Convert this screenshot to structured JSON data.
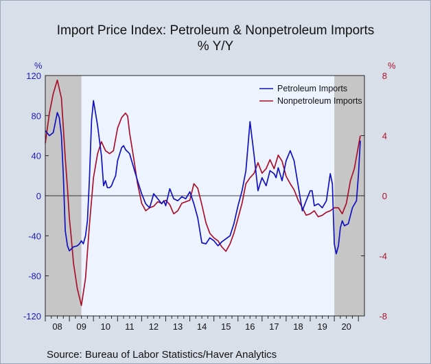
{
  "title": "Import Price Index: Petroleum & Nonpetroleum Imports",
  "subtitle": "% Y/Y",
  "source": "Source:  Bureau of Labor Statistics/Haver Analytics",
  "colors": {
    "petroleum": "#1010c0",
    "nonpetroleum": "#a8102a",
    "plot_background": "#eef4ff",
    "recession_shade": "#c6c6c6",
    "page_background": "#d8dfe9"
  },
  "chart_data": {
    "type": "line",
    "left_axis": {
      "unit_label": "%",
      "range": [
        -120,
        120
      ],
      "ticks": [
        120,
        80,
        40,
        0,
        -40,
        -80,
        -120
      ]
    },
    "right_axis": {
      "unit_label": "%",
      "range": [
        -8,
        8
      ],
      "ticks": [
        8,
        4,
        0,
        -4,
        -8
      ]
    },
    "x_range": [
      2008.0,
      2021.25
    ],
    "x_tick_labels": [
      "08",
      "09",
      "10",
      "11",
      "12",
      "13",
      "14",
      "15",
      "16",
      "17",
      "18",
      "19",
      "20"
    ],
    "recession_shading": [
      [
        2008.0,
        2009.5
      ],
      [
        2020.0,
        2021.25
      ]
    ],
    "series": [
      {
        "name": "Petroleum Imports",
        "axis": "left",
        "x": [
          2008.0,
          2008.17,
          2008.33,
          2008.5,
          2008.58,
          2008.67,
          2008.75,
          2008.83,
          2008.92,
          2009.0,
          2009.17,
          2009.33,
          2009.42,
          2009.5,
          2009.58,
          2009.67,
          2009.75,
          2009.83,
          2009.92,
          2010.0,
          2010.17,
          2010.33,
          2010.42,
          2010.5,
          2010.58,
          2010.67,
          2010.75,
          2010.83,
          2010.92,
          2011.0,
          2011.17,
          2011.25,
          2011.33,
          2011.5,
          2011.67,
          2011.83,
          2012.0,
          2012.17,
          2012.33,
          2012.42,
          2012.5,
          2012.67,
          2012.83,
          2012.92,
          2013.0,
          2013.17,
          2013.33,
          2013.5,
          2013.67,
          2013.83,
          2014.0,
          2014.17,
          2014.33,
          2014.5,
          2014.67,
          2014.83,
          2015.0,
          2015.17,
          2015.33,
          2015.5,
          2015.67,
          2015.83,
          2016.0,
          2016.17,
          2016.33,
          2016.5,
          2016.67,
          2016.83,
          2016.92,
          2017.0,
          2017.17,
          2017.33,
          2017.5,
          2017.58,
          2017.67,
          2017.83,
          2018.0,
          2018.17,
          2018.33,
          2018.5,
          2018.67,
          2018.83,
          2019.0,
          2019.08,
          2019.17,
          2019.33,
          2019.5,
          2019.67,
          2019.83,
          2019.92,
          2020.0,
          2020.08,
          2020.17,
          2020.25,
          2020.33,
          2020.42,
          2020.58,
          2020.75,
          2020.92,
          2021.0,
          2021.08
        ],
        "values": [
          65,
          60,
          63,
          83,
          78,
          60,
          20,
          -35,
          -50,
          -55,
          -51,
          -50,
          -48,
          -45,
          -48,
          -40,
          -25,
          15,
          75,
          95,
          70,
          40,
          10,
          15,
          8,
          8,
          10,
          15,
          20,
          35,
          48,
          50,
          46,
          42,
          28,
          15,
          2,
          -8,
          -12,
          -5,
          2,
          -3,
          -8,
          -5,
          -10,
          7,
          -3,
          -5,
          -1,
          -3,
          4,
          -8,
          -22,
          -47,
          -48,
          -42,
          -45,
          -50,
          -46,
          -43,
          -40,
          -28,
          -10,
          5,
          25,
          74,
          40,
          5,
          12,
          18,
          10,
          25,
          22,
          18,
          28,
          15,
          35,
          45,
          35,
          10,
          -15,
          -5,
          5,
          5,
          -10,
          -8,
          -12,
          -5,
          22,
          12,
          -48,
          -58,
          -50,
          -32,
          -25,
          -30,
          -28,
          -12,
          -5,
          20,
          55
        ]
      },
      {
        "name": "Nonpetroleum Imports",
        "axis": "right",
        "x": [
          2008.0,
          2008.17,
          2008.33,
          2008.5,
          2008.67,
          2008.83,
          2008.92,
          2009.0,
          2009.08,
          2009.17,
          2009.33,
          2009.5,
          2009.67,
          2009.83,
          2010.0,
          2010.17,
          2010.33,
          2010.5,
          2010.67,
          2010.83,
          2011.0,
          2011.17,
          2011.33,
          2011.42,
          2011.5,
          2011.67,
          2011.83,
          2012.0,
          2012.17,
          2012.33,
          2012.5,
          2012.67,
          2012.83,
          2013.0,
          2013.17,
          2013.33,
          2013.5,
          2013.67,
          2013.83,
          2014.0,
          2014.17,
          2014.33,
          2014.5,
          2014.67,
          2014.83,
          2015.0,
          2015.17,
          2015.33,
          2015.5,
          2015.67,
          2015.83,
          2016.0,
          2016.17,
          2016.33,
          2016.5,
          2016.67,
          2016.83,
          2017.0,
          2017.17,
          2017.33,
          2017.5,
          2017.67,
          2017.83,
          2018.0,
          2018.17,
          2018.33,
          2018.5,
          2018.67,
          2018.83,
          2019.0,
          2019.17,
          2019.33,
          2019.5,
          2019.67,
          2019.83,
          2020.0,
          2020.17,
          2020.33,
          2020.5,
          2020.67,
          2020.83,
          2021.0,
          2021.08
        ],
        "values": [
          3.5,
          5.5,
          6.8,
          7.7,
          6.5,
          2.5,
          0.5,
          -1.5,
          -2.8,
          -4.5,
          -6.2,
          -7.3,
          -5.5,
          -2,
          1.2,
          2.8,
          3.6,
          3,
          2.8,
          3,
          4.5,
          5.2,
          5.5,
          5.3,
          4.2,
          2.5,
          0.8,
          -0.5,
          -1,
          -0.8,
          -0.7,
          -0.4,
          -0.5,
          -0.3,
          -0.6,
          -1.2,
          -1,
          -0.5,
          -0.4,
          -0.3,
          0.8,
          0.5,
          -0.6,
          -1.8,
          -2.5,
          -2.8,
          -3,
          -3.4,
          -3.7,
          -3.2,
          -2.5,
          -1.5,
          -0.5,
          0.8,
          1.2,
          1.5,
          2.2,
          1.5,
          1.8,
          2.4,
          1.8,
          2.7,
          2.3,
          1.3,
          0.8,
          0.4,
          -0.3,
          -0.8,
          -1.3,
          -1.2,
          -1,
          -1.4,
          -1.3,
          -1.1,
          -1,
          -0.8,
          -0.8,
          -1.2,
          -0.5,
          1,
          1.8,
          3.3,
          4
        ]
      }
    ]
  }
}
